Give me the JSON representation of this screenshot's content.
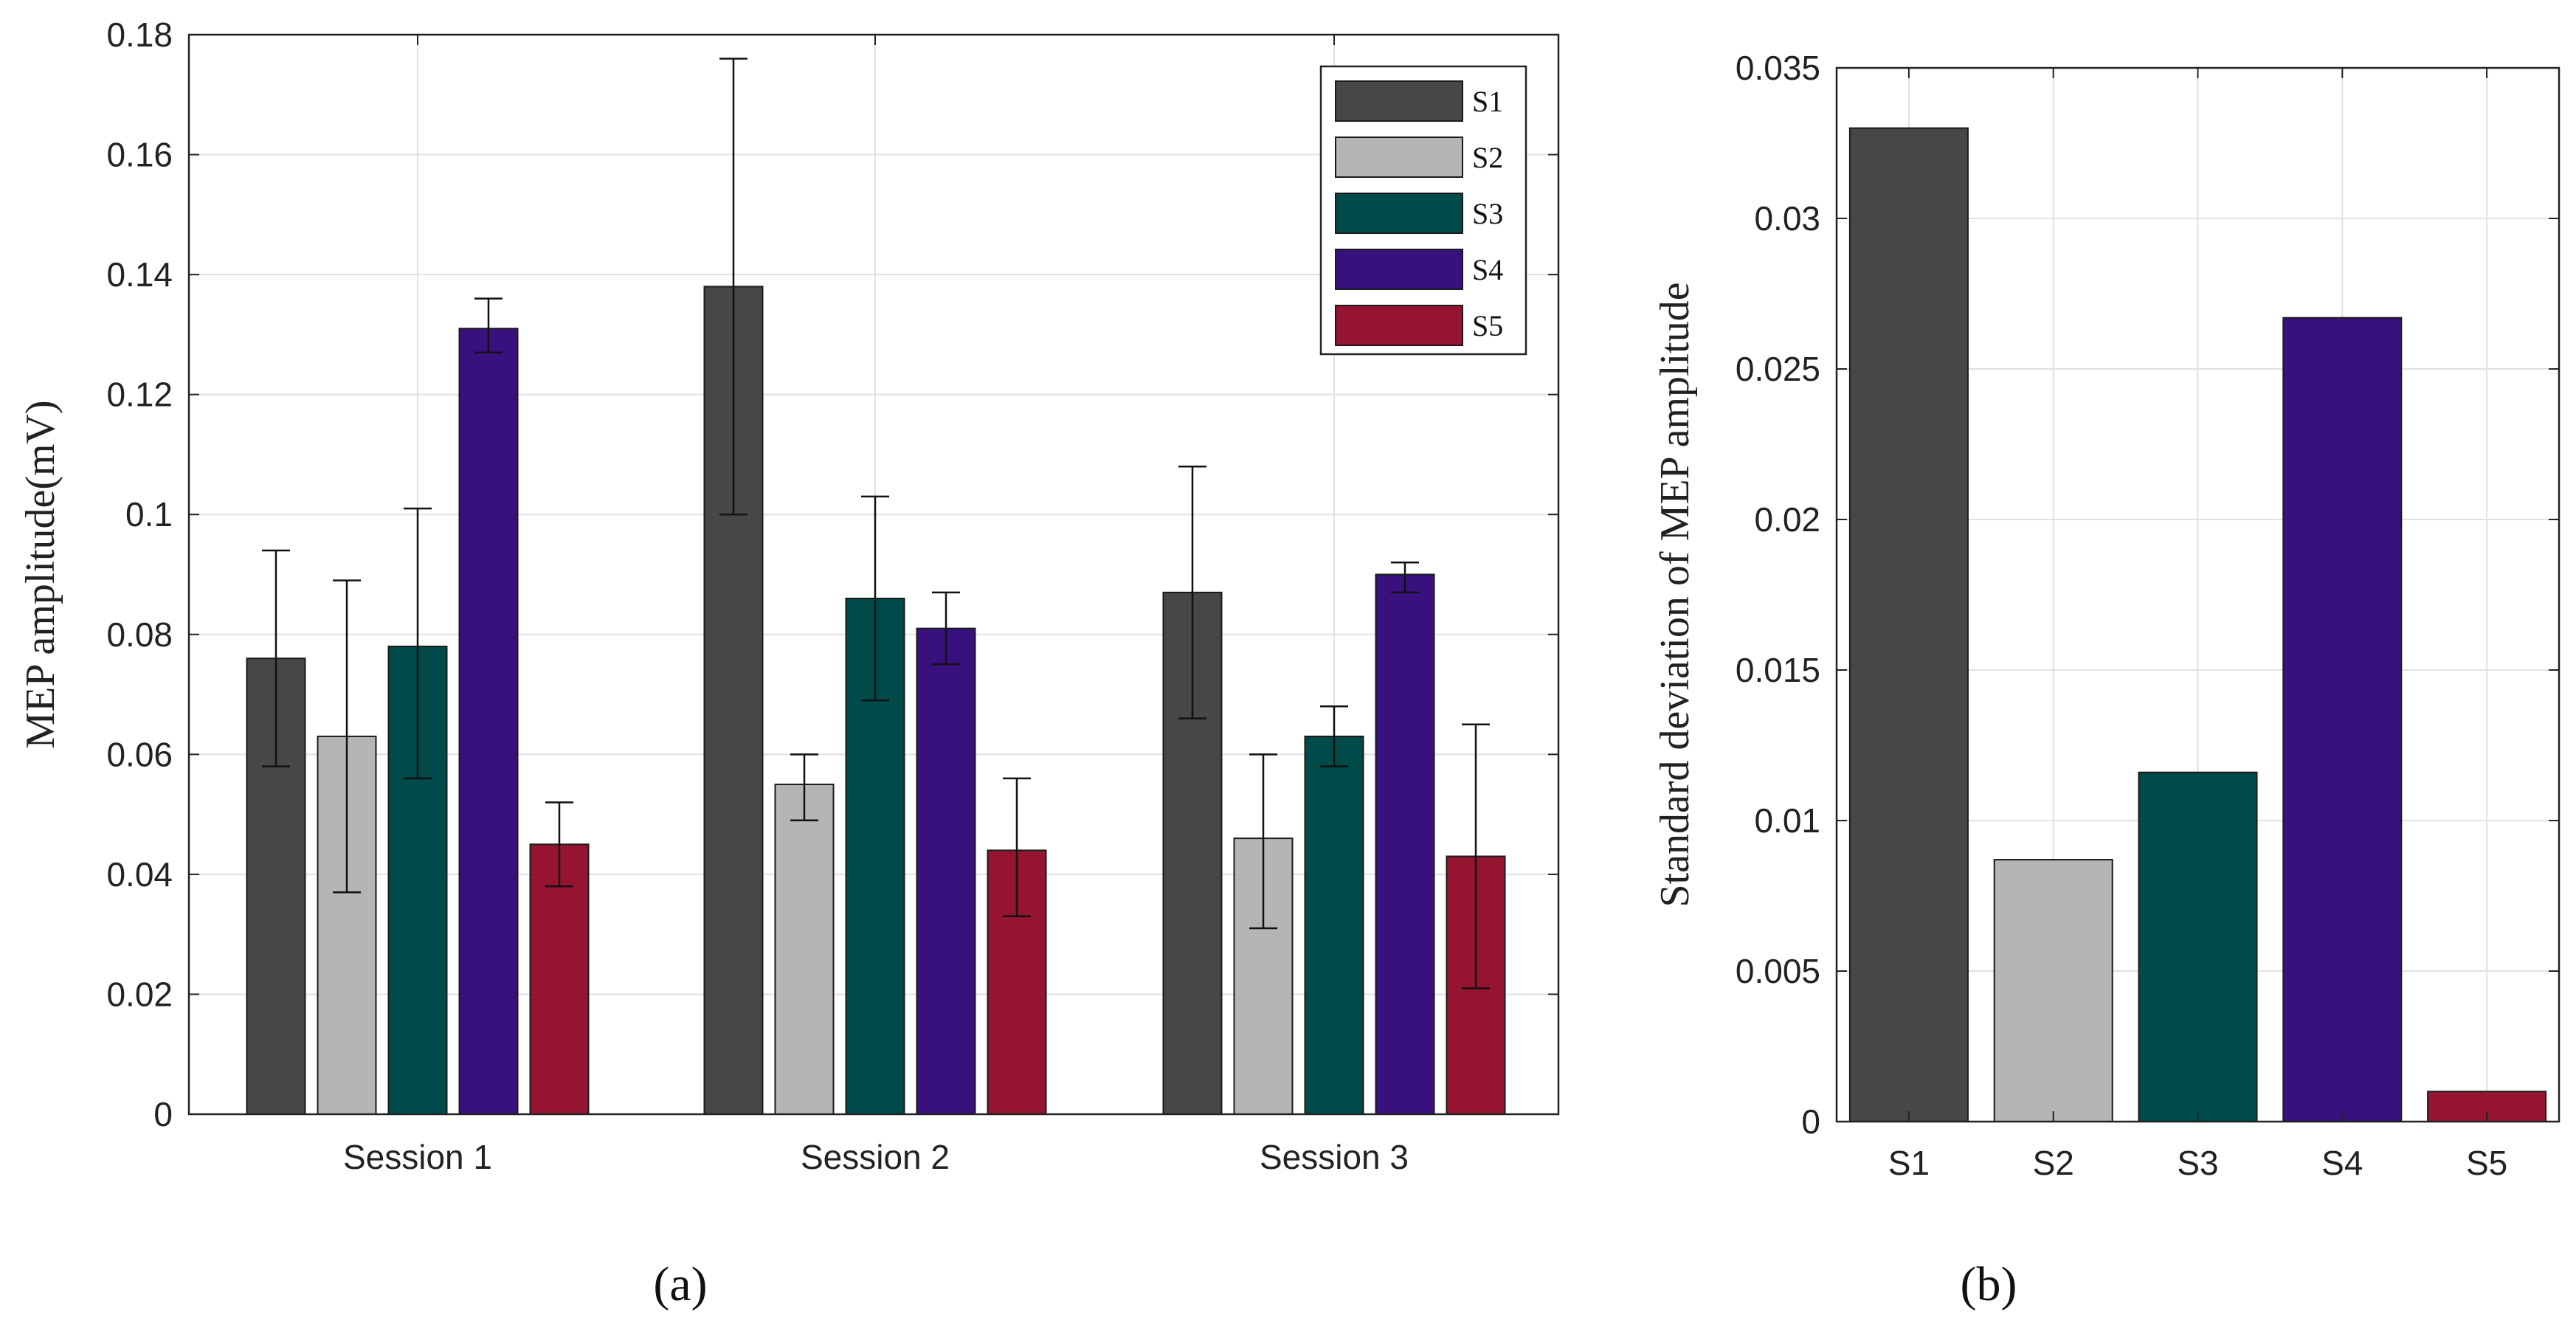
{
  "colors": {
    "S1": "#474747",
    "S2": "#b5b5b5",
    "S3": "#004a4a",
    "S4": "#39117f",
    "S5": "#951531"
  },
  "panel_labels": {
    "a": "(a)",
    "b": "(b)"
  },
  "chart_data": [
    {
      "id": "a",
      "type": "bar",
      "title": "",
      "xlabel": "",
      "ylabel": "MEP amplitude(mV)",
      "ylim": [
        0,
        0.18
      ],
      "yticks": [
        0,
        0.02,
        0.04,
        0.06,
        0.08,
        0.1,
        0.12,
        0.14,
        0.16,
        0.18
      ],
      "ytick_labels": [
        "0",
        "0.02",
        "0.04",
        "0.06",
        "0.08",
        "0.1",
        "0.12",
        "0.14",
        "0.16",
        "0.18"
      ],
      "categories": [
        "Session 1",
        "Session 2",
        "Session 3"
      ],
      "grid": true,
      "legend_position": "top-right",
      "series": [
        {
          "name": "S1",
          "values": [
            0.076,
            0.138,
            0.087
          ],
          "err_low": [
            0.058,
            0.1,
            0.066
          ],
          "err_high": [
            0.094,
            0.176,
            0.108
          ]
        },
        {
          "name": "S2",
          "values": [
            0.063,
            0.055,
            0.046
          ],
          "err_low": [
            0.037,
            0.049,
            0.031
          ],
          "err_high": [
            0.089,
            0.06,
            0.06
          ]
        },
        {
          "name": "S3",
          "values": [
            0.078,
            0.086,
            0.063
          ],
          "err_low": [
            0.056,
            0.069,
            0.058
          ],
          "err_high": [
            0.101,
            0.103,
            0.068
          ]
        },
        {
          "name": "S4",
          "values": [
            0.131,
            0.081,
            0.09
          ],
          "err_low": [
            0.127,
            0.075,
            0.087
          ],
          "err_high": [
            0.136,
            0.087,
            0.092
          ]
        },
        {
          "name": "S5",
          "values": [
            0.045,
            0.044,
            0.043
          ],
          "err_low": [
            0.038,
            0.033,
            0.021
          ],
          "err_high": [
            0.052,
            0.056,
            0.065
          ]
        }
      ]
    },
    {
      "id": "b",
      "type": "bar",
      "title": "",
      "xlabel": "",
      "ylabel": "Standard deviation of MEP amplitude",
      "ylim": [
        0,
        0.035
      ],
      "yticks": [
        0,
        0.005,
        0.01,
        0.015,
        0.02,
        0.025,
        0.03,
        0.035
      ],
      "ytick_labels": [
        "0",
        "0.005",
        "0.01",
        "0.015",
        "0.02",
        "0.025",
        "0.03",
        "0.035"
      ],
      "categories": [
        "S1",
        "S2",
        "S3",
        "S4",
        "S5"
      ],
      "values": [
        0.033,
        0.0087,
        0.0116,
        0.0267,
        0.001
      ],
      "grid": true
    }
  ]
}
